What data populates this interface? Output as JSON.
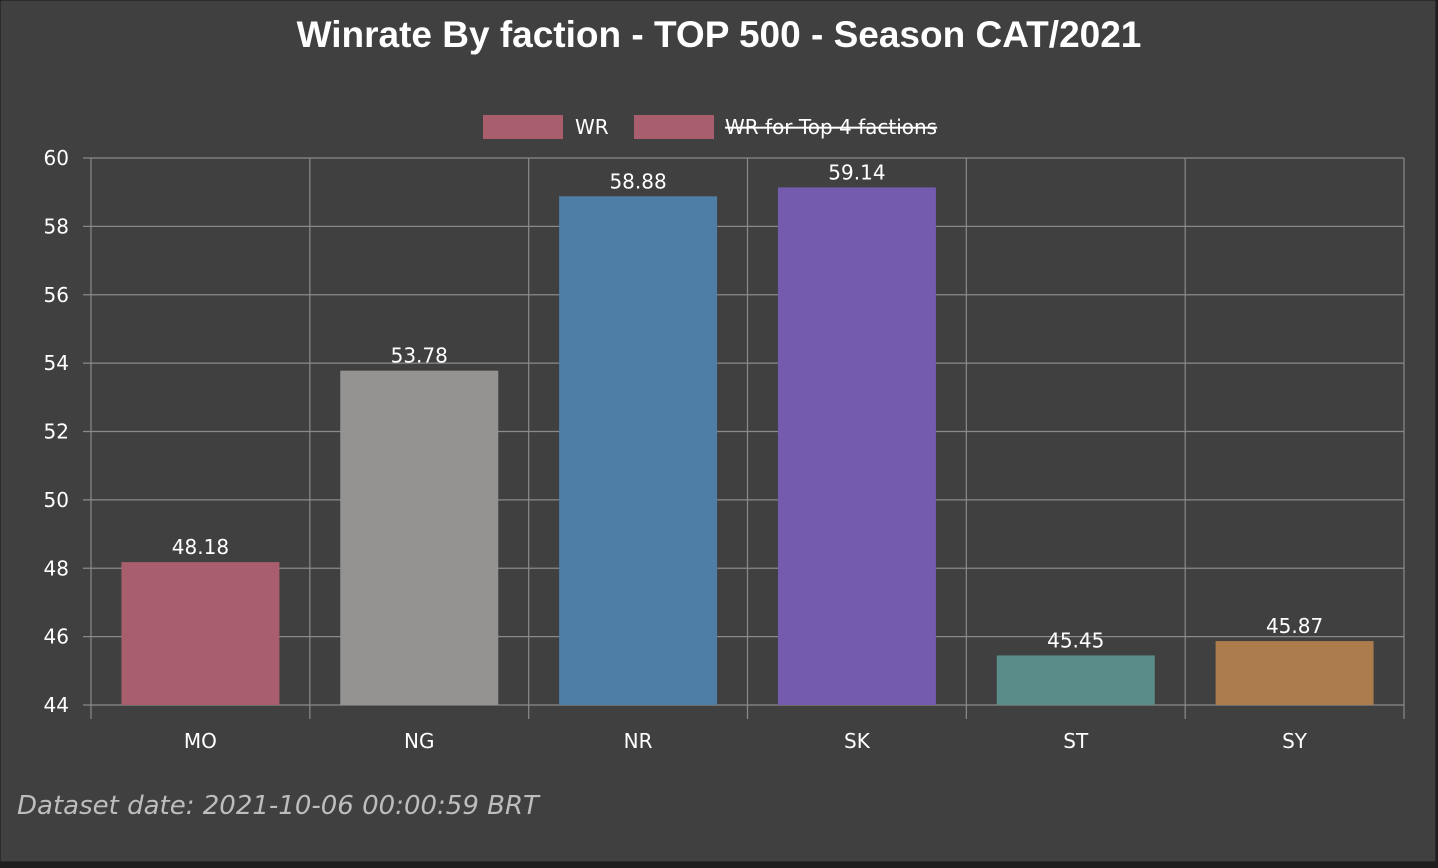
{
  "chart_data": {
    "type": "bar",
    "title": "Winrate By faction - TOP 500 - Season CAT/2021",
    "categories": [
      "MO",
      "NG",
      "NR",
      "SK",
      "ST",
      "SY"
    ],
    "series": [
      {
        "name": "WR",
        "values": [
          48.18,
          53.78,
          58.88,
          59.14,
          45.45,
          45.87
        ],
        "colors": [
          "#a85e6c",
          "#949391",
          "#4e7ea6",
          "#745bae",
          "#5a8c8a",
          "#ac7c4c"
        ]
      },
      {
        "name": "WR for Top 4 factions",
        "hidden": true,
        "color": "#a85e6c"
      }
    ],
    "data_labels": [
      "48.18",
      "53.78",
      "58.88",
      "59.14",
      "45.45",
      "45.87"
    ],
    "ylim": [
      44,
      60
    ],
    "yticks": [
      "60",
      "58",
      "56",
      "54",
      "52",
      "50",
      "48",
      "46",
      "44"
    ],
    "grid": true,
    "legend_position": "top-center"
  },
  "footer": {
    "text": "Dataset date: 2021-10-06 00:00:59 BRT"
  }
}
